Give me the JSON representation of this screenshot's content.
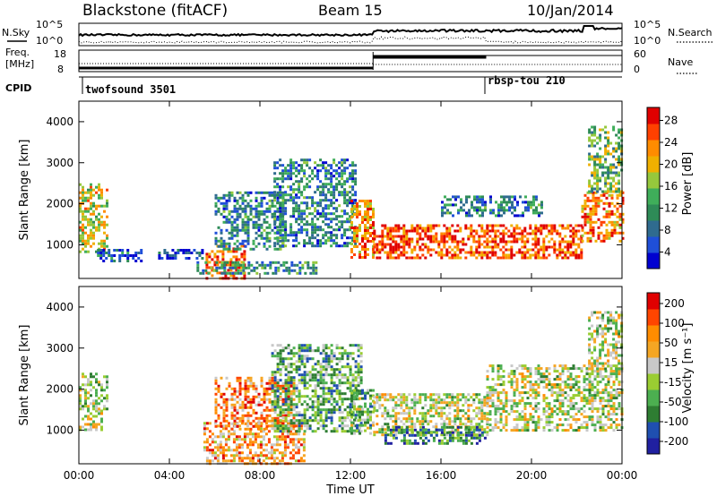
{
  "header": {
    "station": "Blackstone (fitACF)",
    "beam": "Beam 15",
    "date": "10/Jan/2014"
  },
  "top_panels": {
    "nsky_label": "N.Sky",
    "nsearch_label": "N.Search",
    "nsky_ticks": [
      "10^5",
      "10^0"
    ],
    "nsearch_ticks": [
      "10^5",
      "10^0"
    ],
    "freq_label": "Freq.",
    "freq_unit": "[MHz]",
    "freq_ticks": [
      "18",
      "8"
    ],
    "nave_label": "Nave",
    "nave_ticks": [
      "60",
      "0"
    ],
    "cpid_label": "CPID",
    "cpid_entries": [
      {
        "text": "twofsound 3501",
        "start_hour": 0
      },
      {
        "text": "rbsp-tou 210",
        "start_hour": 18
      }
    ]
  },
  "x_axis": {
    "label": "Time UT",
    "ticks": [
      "00:00",
      "04:00",
      "08:00",
      "12:00",
      "16:00",
      "20:00",
      "00:00"
    ]
  },
  "chart_data": [
    {
      "type": "heatmap",
      "name": "power",
      "ylabel": "Slant Range [km]",
      "xlim_hours": [
        0,
        24
      ],
      "ylim_km": [
        180,
        4500
      ],
      "yticks": [
        "1000",
        "2000",
        "3000",
        "4000"
      ],
      "colorbar": {
        "label": "Power [dB]",
        "ticks": [
          "28",
          "24",
          "20",
          "16",
          "12",
          "8",
          "4"
        ],
        "colors": [
          "#0000d0",
          "#1f4fd8",
          "#2f6b8f",
          "#2e8b57",
          "#3fae5a",
          "#96c83c",
          "#f0b000",
          "#ff8c00",
          "#ff4000",
          "#e00000"
        ]
      },
      "regions": [
        {
          "t0": 0.0,
          "t1": 1.2,
          "r0": 800,
          "r1": 2500,
          "level": 0.6
        },
        {
          "t0": 0.8,
          "t1": 2.8,
          "r0": 600,
          "r1": 900,
          "level": 0.2
        },
        {
          "t0": 3.5,
          "t1": 5.5,
          "r0": 700,
          "r1": 900,
          "level": 0.15
        },
        {
          "t0": 5.6,
          "t1": 7.3,
          "r0": 180,
          "r1": 1000,
          "level": 0.85
        },
        {
          "t0": 5.2,
          "t1": 10.5,
          "r0": 300,
          "r1": 600,
          "level": 0.35
        },
        {
          "t0": 6.0,
          "t1": 9.0,
          "r0": 900,
          "r1": 2300,
          "level": 0.3
        },
        {
          "t0": 8.6,
          "t1": 12.2,
          "r0": 1000,
          "r1": 3100,
          "level": 0.3
        },
        {
          "t0": 12.0,
          "t1": 13.0,
          "r0": 700,
          "r1": 2100,
          "level": 0.75
        },
        {
          "t0": 13.0,
          "t1": 22.2,
          "r0": 700,
          "r1": 1500,
          "level": 0.85
        },
        {
          "t0": 16.0,
          "t1": 20.5,
          "r0": 1700,
          "r1": 2200,
          "level": 0.3
        },
        {
          "t0": 22.2,
          "t1": 24.0,
          "r0": 1100,
          "r1": 2300,
          "level": 0.8
        },
        {
          "t0": 22.5,
          "t1": 24.0,
          "r0": 2300,
          "r1": 3900,
          "level": 0.45
        }
      ]
    },
    {
      "type": "heatmap",
      "name": "velocity",
      "ylabel": "Slant Range [km]",
      "xlim_hours": [
        0,
        24
      ],
      "ylim_km": [
        180,
        4500
      ],
      "yticks": [
        "1000",
        "2000",
        "3000",
        "4000"
      ],
      "colorbar": {
        "label": "Velocity [m s⁻¹]",
        "ticks": [
          "200",
          "100",
          "50",
          "15",
          "-15",
          "-50",
          "-100",
          "-200"
        ],
        "colors": [
          "#2020a0",
          "#1f4fb0",
          "#2e7d32",
          "#4caf50",
          "#9acd32",
          "#c8c8c8",
          "#f5a623",
          "#ff8c00",
          "#ff4500",
          "#e00000"
        ]
      },
      "regions": [
        {
          "t0": 0.0,
          "t1": 1.0,
          "r0": 1000,
          "r1": 1500,
          "level": 0.55
        },
        {
          "t0": 0.0,
          "t1": 1.3,
          "r0": 1500,
          "r1": 2400,
          "level": 0.45
        },
        {
          "t0": 5.5,
          "t1": 10.0,
          "r0": 180,
          "r1": 1200,
          "level": 0.7
        },
        {
          "t0": 6.0,
          "t1": 9.5,
          "r0": 1000,
          "r1": 2300,
          "level": 0.75
        },
        {
          "t0": 8.5,
          "t1": 12.5,
          "r0": 1000,
          "r1": 3100,
          "level": 0.35
        },
        {
          "t0": 12.0,
          "t1": 13.0,
          "r0": 900,
          "r1": 2000,
          "level": 0.4
        },
        {
          "t0": 13.0,
          "t1": 18.0,
          "r0": 900,
          "r1": 1900,
          "level": 0.5
        },
        {
          "t0": 13.5,
          "t1": 18.0,
          "r0": 700,
          "r1": 1100,
          "level": 0.25
        },
        {
          "t0": 18.0,
          "t1": 24.0,
          "r0": 1000,
          "r1": 2600,
          "level": 0.5
        },
        {
          "t0": 22.5,
          "t1": 24.0,
          "r0": 2500,
          "r1": 3900,
          "level": 0.5
        }
      ]
    }
  ]
}
